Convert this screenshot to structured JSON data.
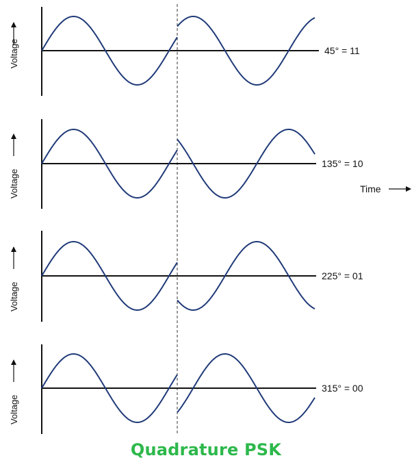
{
  "caption": "Quadrature PSK",
  "caption_color": "#2db84b",
  "wave_color": "#1f3a78",
  "axis_color": "#111111",
  "time_label": "Time",
  "panels": [
    {
      "y_label": "Voltage",
      "phase_label": "45° = 11",
      "phase_deg": 45
    },
    {
      "y_label": "Voltage",
      "phase_label": "135° = 10",
      "phase_deg": 135
    },
    {
      "y_label": "Voltage",
      "phase_label": "225° = 01",
      "phase_deg": 225
    },
    {
      "y_label": "Voltage",
      "phase_label": "315° = 00",
      "phase_deg": 315
    }
  ]
}
